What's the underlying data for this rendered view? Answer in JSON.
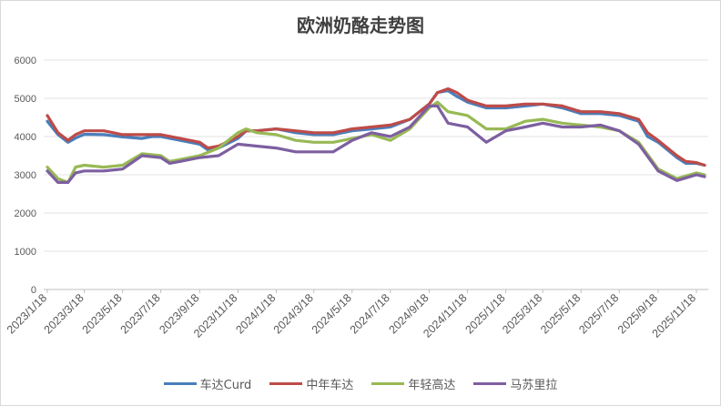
{
  "chart_data": {
    "type": "line",
    "title": "欧洲奶酪走势图",
    "xlabel": "",
    "ylabel": "",
    "ylim": [
      0,
      6000
    ],
    "yticks": [
      0,
      1000,
      2000,
      3000,
      4000,
      5000,
      6000
    ],
    "grid": "horizontal",
    "legend_position": "bottom",
    "x_tick_labels": [
      "2023/1/18",
      "2023/3/18",
      "2023/5/18",
      "2023/7/18",
      "2023/9/18",
      "2023/11/18",
      "2024/1/18",
      "2024/3/18",
      "2024/5/18",
      "2024/7/18",
      "2024/9/18",
      "2024/11/18",
      "2025/1/18",
      "2025/3/18",
      "2025/5/18",
      "2025/7/18",
      "2025/9/18",
      "2025/11/18"
    ],
    "series": [
      {
        "name": "车达Curd",
        "color": "#4a7ebb",
        "points": [
          [
            "2023/1/18",
            4400
          ],
          [
            "2023/2/4",
            4050
          ],
          [
            "2023/2/20",
            3850
          ],
          [
            "2023/3/4",
            3960
          ],
          [
            "2023/3/18",
            4060
          ],
          [
            "2023/4/18",
            4050
          ],
          [
            "2023/5/18",
            3990
          ],
          [
            "2023/6/18",
            3950
          ],
          [
            "2023/7/4",
            4000
          ],
          [
            "2023/7/18",
            4000
          ],
          [
            "2023/8/18",
            3900
          ],
          [
            "2023/9/18",
            3800
          ],
          [
            "2023/10/1",
            3650
          ],
          [
            "2023/10/18",
            3700
          ],
          [
            "2023/11/18",
            3950
          ],
          [
            "2023/12/1",
            4150
          ],
          [
            "2023/12/18",
            4150
          ],
          [
            "2024/1/18",
            4200
          ],
          [
            "2024/2/18",
            4100
          ],
          [
            "2024/3/18",
            4050
          ],
          [
            "2024/4/18",
            4050
          ],
          [
            "2024/5/18",
            4150
          ],
          [
            "2024/6/18",
            4200
          ],
          [
            "2024/7/18",
            4250
          ],
          [
            "2024/8/18",
            4450
          ],
          [
            "2024/9/18",
            4850
          ],
          [
            "2024/10/1",
            5150
          ],
          [
            "2024/10/18",
            5200
          ],
          [
            "2024/11/1",
            5050
          ],
          [
            "2024/11/18",
            4900
          ],
          [
            "2024/12/18",
            4750
          ],
          [
            "2025/1/18",
            4750
          ],
          [
            "2025/2/18",
            4800
          ],
          [
            "2025/3/18",
            4850
          ],
          [
            "2025/4/18",
            4750
          ],
          [
            "2025/5/18",
            4600
          ],
          [
            "2025/6/18",
            4600
          ],
          [
            "2025/7/18",
            4550
          ],
          [
            "2025/8/18",
            4400
          ],
          [
            "2025/9/1",
            4000
          ],
          [
            "2025/9/18",
            3850
          ],
          [
            "2025/10/18",
            3450
          ],
          [
            "2025/11/1",
            3300
          ],
          [
            "2025/11/18",
            3300
          ],
          [
            "2025/12/1",
            3250
          ]
        ]
      },
      {
        "name": "中年车达",
        "color": "#be4b48",
        "points": [
          [
            "2023/1/18",
            4550
          ],
          [
            "2023/2/4",
            4100
          ],
          [
            "2023/2/20",
            3900
          ],
          [
            "2023/3/4",
            4050
          ],
          [
            "2023/3/18",
            4150
          ],
          [
            "2023/4/18",
            4150
          ],
          [
            "2023/5/18",
            4050
          ],
          [
            "2023/6/18",
            4050
          ],
          [
            "2023/7/4",
            4050
          ],
          [
            "2023/7/18",
            4050
          ],
          [
            "2023/8/18",
            3950
          ],
          [
            "2023/9/18",
            3850
          ],
          [
            "2023/10/1",
            3700
          ],
          [
            "2023/10/18",
            3750
          ],
          [
            "2023/11/18",
            4000
          ],
          [
            "2023/12/1",
            4150
          ],
          [
            "2023/12/18",
            4150
          ],
          [
            "2024/1/18",
            4200
          ],
          [
            "2024/2/18",
            4150
          ],
          [
            "2024/3/18",
            4100
          ],
          [
            "2024/4/18",
            4100
          ],
          [
            "2024/5/18",
            4200
          ],
          [
            "2024/6/18",
            4250
          ],
          [
            "2024/7/18",
            4300
          ],
          [
            "2024/8/18",
            4450
          ],
          [
            "2024/9/18",
            4850
          ],
          [
            "2024/10/1",
            5150
          ],
          [
            "2024/10/18",
            5250
          ],
          [
            "2024/11/1",
            5150
          ],
          [
            "2024/11/18",
            4950
          ],
          [
            "2024/12/18",
            4800
          ],
          [
            "2025/1/18",
            4800
          ],
          [
            "2025/2/18",
            4850
          ],
          [
            "2025/3/18",
            4850
          ],
          [
            "2025/4/18",
            4800
          ],
          [
            "2025/5/18",
            4650
          ],
          [
            "2025/6/18",
            4650
          ],
          [
            "2025/7/18",
            4600
          ],
          [
            "2025/8/18",
            4450
          ],
          [
            "2025/9/1",
            4100
          ],
          [
            "2025/9/18",
            3900
          ],
          [
            "2025/10/18",
            3500
          ],
          [
            "2025/11/1",
            3350
          ],
          [
            "2025/11/18",
            3320
          ],
          [
            "2025/12/1",
            3250
          ]
        ]
      },
      {
        "name": "年轻高达",
        "color": "#98b954",
        "points": [
          [
            "2023/1/18",
            3200
          ],
          [
            "2023/2/4",
            2900
          ],
          [
            "2023/2/20",
            2800
          ],
          [
            "2023/3/4",
            3200
          ],
          [
            "2023/3/18",
            3250
          ],
          [
            "2023/4/18",
            3200
          ],
          [
            "2023/5/18",
            3250
          ],
          [
            "2023/6/18",
            3550
          ],
          [
            "2023/7/18",
            3500
          ],
          [
            "2023/8/1",
            3350
          ],
          [
            "2023/8/18",
            3400
          ],
          [
            "2023/9/18",
            3500
          ],
          [
            "2023/10/18",
            3700
          ],
          [
            "2023/11/18",
            4100
          ],
          [
            "2023/12/1",
            4200
          ],
          [
            "2023/12/18",
            4100
          ],
          [
            "2024/1/18",
            4050
          ],
          [
            "2024/2/18",
            3900
          ],
          [
            "2024/3/18",
            3850
          ],
          [
            "2024/4/18",
            3850
          ],
          [
            "2024/5/18",
            3950
          ],
          [
            "2024/6/18",
            4050
          ],
          [
            "2024/7/18",
            3900
          ],
          [
            "2024/8/18",
            4200
          ],
          [
            "2024/9/18",
            4750
          ],
          [
            "2024/10/1",
            4900
          ],
          [
            "2024/10/18",
            4650
          ],
          [
            "2024/11/18",
            4550
          ],
          [
            "2024/12/18",
            4200
          ],
          [
            "2025/1/18",
            4200
          ],
          [
            "2025/2/18",
            4400
          ],
          [
            "2025/3/18",
            4450
          ],
          [
            "2025/4/18",
            4350
          ],
          [
            "2025/5/18",
            4300
          ],
          [
            "2025/6/18",
            4250
          ],
          [
            "2025/7/18",
            4150
          ],
          [
            "2025/8/18",
            3850
          ],
          [
            "2025/9/18",
            3150
          ],
          [
            "2025/10/18",
            2900
          ],
          [
            "2025/11/18",
            3050
          ],
          [
            "2025/12/1",
            3000
          ]
        ]
      },
      {
        "name": "马苏里拉",
        "color": "#7d5fa0",
        "points": [
          [
            "2023/1/18",
            3100
          ],
          [
            "2023/2/4",
            2800
          ],
          [
            "2023/2/20",
            2800
          ],
          [
            "2023/3/4",
            3050
          ],
          [
            "2023/3/18",
            3100
          ],
          [
            "2023/4/18",
            3100
          ],
          [
            "2023/5/18",
            3150
          ],
          [
            "2023/6/18",
            3500
          ],
          [
            "2023/7/18",
            3450
          ],
          [
            "2023/8/1",
            3300
          ],
          [
            "2023/8/18",
            3350
          ],
          [
            "2023/9/18",
            3450
          ],
          [
            "2023/10/18",
            3500
          ],
          [
            "2023/11/18",
            3800
          ],
          [
            "2023/12/18",
            3750
          ],
          [
            "2024/1/18",
            3700
          ],
          [
            "2024/2/18",
            3600
          ],
          [
            "2024/3/18",
            3600
          ],
          [
            "2024/4/18",
            3600
          ],
          [
            "2024/5/18",
            3900
          ],
          [
            "2024/6/18",
            4100
          ],
          [
            "2024/7/18",
            4000
          ],
          [
            "2024/8/18",
            4250
          ],
          [
            "2024/9/18",
            4800
          ],
          [
            "2024/10/1",
            4800
          ],
          [
            "2024/10/18",
            4350
          ],
          [
            "2024/11/18",
            4250
          ],
          [
            "2024/12/18",
            3850
          ],
          [
            "2025/1/18",
            4150
          ],
          [
            "2025/2/18",
            4250
          ],
          [
            "2025/3/18",
            4350
          ],
          [
            "2025/4/18",
            4250
          ],
          [
            "2025/5/18",
            4250
          ],
          [
            "2025/6/18",
            4300
          ],
          [
            "2025/7/18",
            4150
          ],
          [
            "2025/8/18",
            3800
          ],
          [
            "2025/9/18",
            3100
          ],
          [
            "2025/10/18",
            2850
          ],
          [
            "2025/11/18",
            3000
          ],
          [
            "2025/12/1",
            2950
          ]
        ]
      }
    ]
  }
}
